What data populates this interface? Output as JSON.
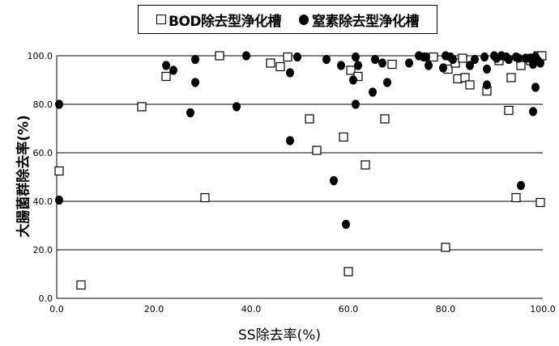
{
  "chart_data": {
    "type": "scatter",
    "xlabel": "SS除去率(%)",
    "ylabel": "大腸菌群除去率(%)",
    "xlim": [
      0,
      100
    ],
    "ylim": [
      0,
      100
    ],
    "x_ticks": [
      "0.0",
      "20.0",
      "40.0",
      "60.0",
      "80.0",
      "100.0"
    ],
    "y_ticks": [
      "0.0",
      "20.0",
      "40.0",
      "60.0",
      "80.0",
      "100.0"
    ],
    "grid": "horizontal",
    "legend_position": "top-center",
    "series": [
      {
        "name": "BOD除去型浄化槽",
        "marker": "open-square",
        "color": "#000000",
        "points": [
          [
            0.5,
            52.5
          ],
          [
            5,
            5.5
          ],
          [
            17.5,
            79
          ],
          [
            22.5,
            91.5
          ],
          [
            30.5,
            41.5
          ],
          [
            33.5,
            100
          ],
          [
            44,
            97
          ],
          [
            46,
            95.5
          ],
          [
            47.5,
            99.5
          ],
          [
            52,
            74
          ],
          [
            53.5,
            61
          ],
          [
            59,
            66.5
          ],
          [
            60,
            11
          ],
          [
            60.5,
            94
          ],
          [
            62,
            91.5
          ],
          [
            63.5,
            55
          ],
          [
            67.5,
            74
          ],
          [
            69,
            96.5
          ],
          [
            77.5,
            99.5
          ],
          [
            80,
            21
          ],
          [
            80.5,
            94.5
          ],
          [
            82,
            97
          ],
          [
            82.5,
            90.5
          ],
          [
            83.5,
            99
          ],
          [
            84,
            91
          ],
          [
            85,
            88
          ],
          [
            88.5,
            85.5
          ],
          [
            91,
            98
          ],
          [
            93,
            77.5
          ],
          [
            93.5,
            91
          ],
          [
            94.5,
            41.5
          ],
          [
            95.5,
            96
          ],
          [
            97.5,
            98
          ],
          [
            98,
            99
          ],
          [
            99,
            100
          ],
          [
            99.5,
            39.5
          ],
          [
            99.8,
            100
          ]
        ]
      },
      {
        "name": "窒素除去型浄化槽",
        "marker": "filled-circle",
        "color": "#000000",
        "points": [
          [
            0.5,
            80
          ],
          [
            0.5,
            40.5
          ],
          [
            22.5,
            96
          ],
          [
            24,
            94
          ],
          [
            27.5,
            76.5
          ],
          [
            28.5,
            98.5
          ],
          [
            28.5,
            89
          ],
          [
            37,
            79
          ],
          [
            39,
            100
          ],
          [
            48,
            65
          ],
          [
            48,
            93
          ],
          [
            49.5,
            99.5
          ],
          [
            55.5,
            98.5
          ],
          [
            57,
            48.5
          ],
          [
            58.5,
            96
          ],
          [
            59.5,
            30.5
          ],
          [
            61,
            90
          ],
          [
            61.5,
            99.5
          ],
          [
            61.5,
            80
          ],
          [
            62,
            96
          ],
          [
            65,
            85
          ],
          [
            65.5,
            98.5
          ],
          [
            67,
            97
          ],
          [
            68,
            89
          ],
          [
            72.5,
            97
          ],
          [
            74.5,
            100
          ],
          [
            75.5,
            99.5
          ],
          [
            76,
            99.5
          ],
          [
            76.5,
            96
          ],
          [
            79.5,
            95
          ],
          [
            80,
            100
          ],
          [
            81,
            99.5
          ],
          [
            81.5,
            98.5
          ],
          [
            85,
            96
          ],
          [
            86,
            98.5
          ],
          [
            88,
            99.5
          ],
          [
            88.5,
            88
          ],
          [
            88.5,
            94.5
          ],
          [
            90,
            100
          ],
          [
            90.5,
            99
          ],
          [
            91.5,
            100
          ],
          [
            92.5,
            99.5
          ],
          [
            93,
            98.5
          ],
          [
            94.5,
            99.5
          ],
          [
            95,
            99
          ],
          [
            95.5,
            46.5
          ],
          [
            96.5,
            99
          ],
          [
            97.5,
            99
          ],
          [
            98,
            77
          ],
          [
            98,
            96.5
          ],
          [
            98.5,
            87
          ],
          [
            98.5,
            99.5
          ],
          [
            99,
            98
          ],
          [
            99.5,
            97
          ]
        ]
      }
    ]
  }
}
